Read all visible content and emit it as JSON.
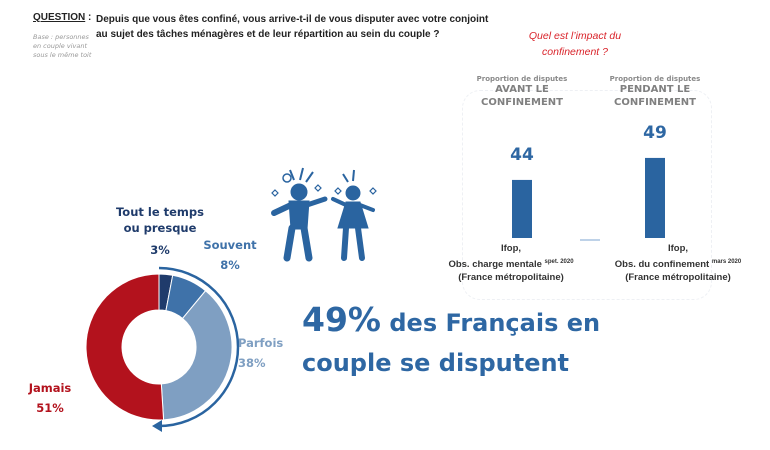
{
  "question": {
    "label": "QUESTION",
    "separator": ":",
    "line1": "Depuis que vous êtes confiné, vous arrive-t-il de vous disputer avec votre conjoint",
    "line2": "au sujet des tâches ménagères et de leur répartition au sein du couple ?",
    "base": "Base : personnes en couple vivant sous le même toit"
  },
  "impact_title": {
    "line1": "Quel est l’impact du",
    "line2": "confinement ?"
  },
  "headline": {
    "pct": "49%",
    "rest1": " des Français en",
    "line2": "couple se disputent"
  },
  "colors": {
    "navy": "#1f3b6b",
    "mid_blue": "#3f72a9",
    "light_blue": "#7f9fc2",
    "red": "#b3121d",
    "bar": "#2a64a0",
    "accent_text": "#2e67a3",
    "impact_red": "#d9232a"
  },
  "icons": {
    "illustration": "arguing-couple-icon",
    "arrow": "curved-arrow-icon"
  },
  "chart_data": [
    {
      "type": "pie",
      "donut": true,
      "slices": [
        {
          "label": "Tout le temps ou presque",
          "label_lines": [
            "Tout le temps",
            "ou presque"
          ],
          "value": 3,
          "value_label": "3%",
          "color": "#1f3b6b"
        },
        {
          "label": "Souvent",
          "label_lines": [
            "Souvent"
          ],
          "value": 8,
          "value_label": "8%",
          "color": "#3f72a9"
        },
        {
          "label": "Parfois",
          "label_lines": [
            "Parfois"
          ],
          "value": 38,
          "value_label": "38%",
          "color": "#7f9fc2"
        },
        {
          "label": "Jamais",
          "label_lines": [
            "Jamais"
          ],
          "value": 51,
          "value_label": "51%",
          "color": "#b3121d"
        }
      ]
    },
    {
      "type": "bar",
      "categories": [
        {
          "small": "Proportion de disputes",
          "line1": "AVANT LE",
          "line2": "CONFINEMENT",
          "source1": "Ifop,",
          "source2": "Obs. charge mentale",
          "source_date": "spet. 2020",
          "source3": "(France métropolitaine)"
        },
        {
          "small": "Proportion de disputes",
          "line1": "PENDANT LE",
          "line2": "CONFINEMENT",
          "source1": "Ifop,",
          "source2": "Obs. du confinement",
          "source_date": "mars 2020",
          "source3": "(France métropolitaine)"
        }
      ],
      "values": [
        44,
        49
      ],
      "value_labels": [
        "44",
        "49"
      ],
      "color": "#2a64a0"
    }
  ]
}
